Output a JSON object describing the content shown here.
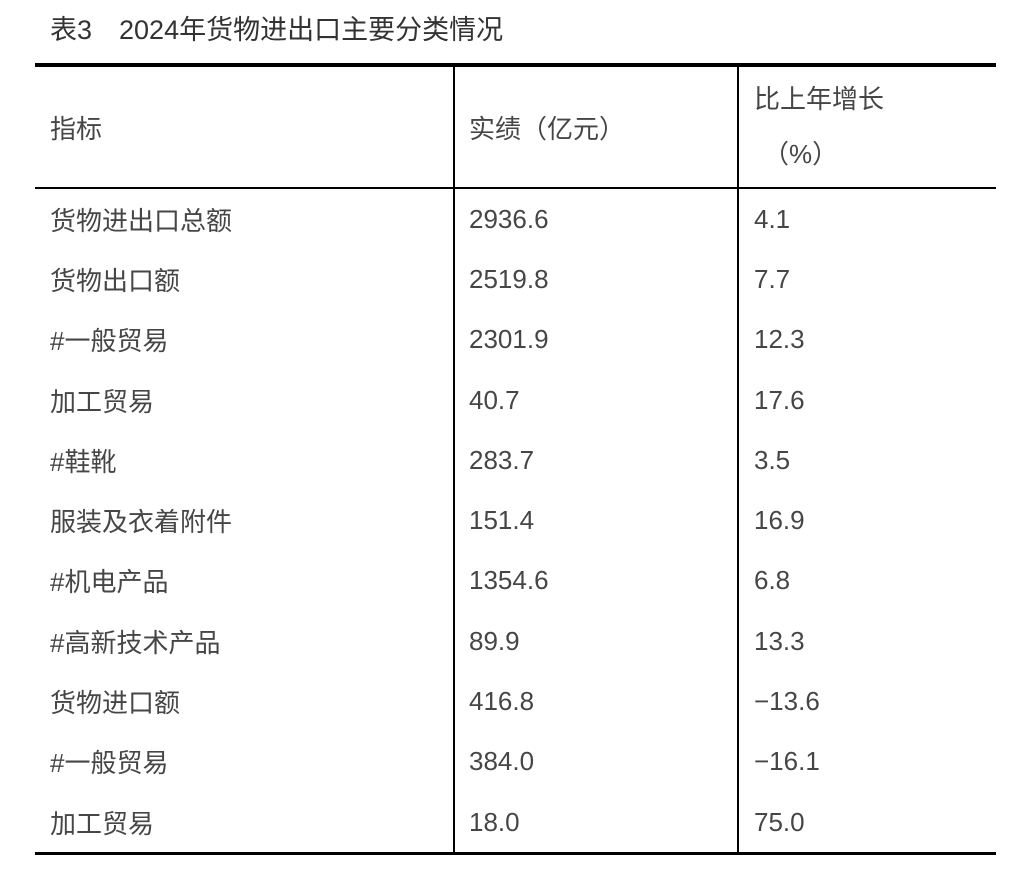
{
  "title": "表3　2024年货物进出口主要分类情况",
  "colors": {
    "rule": "#000000",
    "body_text": "#464646",
    "title_text": "#333333",
    "background": "#ffffff"
  },
  "table": {
    "columns": [
      {
        "label": "指标"
      },
      {
        "label": "实绩（亿元）"
      },
      {
        "label_line1": "比上年增长",
        "label_line2": "（%）"
      }
    ],
    "rows": [
      {
        "indicator": "货物进出口总额",
        "value": "2936.6",
        "growth": "4.1"
      },
      {
        "indicator": "货物出口额",
        "value": "2519.8",
        "growth": "7.7"
      },
      {
        "indicator": "#一般贸易",
        "value": "2301.9",
        "growth": "12.3"
      },
      {
        "indicator": "加工贸易",
        "value": "40.7",
        "growth": "17.6"
      },
      {
        "indicator": "#鞋靴",
        "value": "283.7",
        "growth": "3.5"
      },
      {
        "indicator": "服装及衣着附件",
        "value": "151.4",
        "growth": "16.9"
      },
      {
        "indicator": "#机电产品",
        "value": "1354.6",
        "growth": "6.8"
      },
      {
        "indicator": "#高新技术产品",
        "value": "89.9",
        "growth": "13.3"
      },
      {
        "indicator": "货物进口额",
        "value": "416.8",
        "growth": "−13.6"
      },
      {
        "indicator": "#一般贸易",
        "value": "384.0",
        "growth": "−16.1"
      },
      {
        "indicator": "加工贸易",
        "value": "18.0",
        "growth": "75.0"
      }
    ]
  },
  "chart_data": {
    "type": "table",
    "title": "表3　2024年货物进出口主要分类情况",
    "categories": [
      "货物进出口总额",
      "货物出口额",
      "#一般贸易",
      "加工贸易",
      "#鞋靴",
      "服装及衣着附件",
      "#机电产品",
      "#高新技术产品",
      "货物进口额",
      "#一般贸易",
      "加工贸易"
    ],
    "series": [
      {
        "name": "实绩（亿元）",
        "values": [
          2936.6,
          2519.8,
          2301.9,
          40.7,
          283.7,
          151.4,
          1354.6,
          89.9,
          416.8,
          384.0,
          18.0
        ]
      },
      {
        "name": "比上年增长（%）",
        "values": [
          4.1,
          7.7,
          12.3,
          17.6,
          3.5,
          16.9,
          6.8,
          13.3,
          -13.6,
          -16.1,
          75.0
        ]
      }
    ]
  }
}
